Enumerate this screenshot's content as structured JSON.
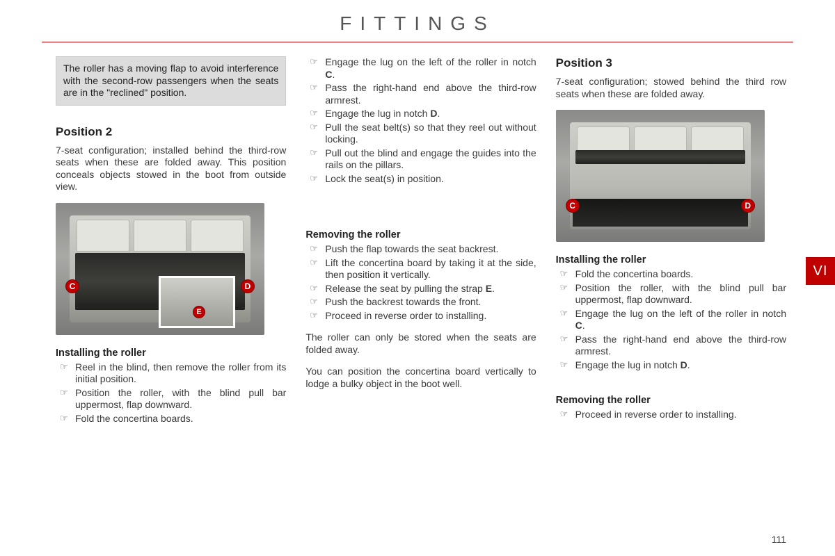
{
  "header": {
    "title": "FITTINGS"
  },
  "sideTab": "VI",
  "pageNumber": "111",
  "col1": {
    "infoBox": "The roller has a moving flap to avoid interference with the second-row passengers when the seats are in the \"reclined\" position.",
    "pos2": {
      "heading": "Position 2",
      "body": "7-seat configuration; installed behind the third-row seats when these are folded away. This position conceals objects stowed in the boot from outside view."
    },
    "fig": {
      "markerC": "C",
      "markerD": "D",
      "markerE": "E"
    },
    "install": {
      "heading": "Installing the roller",
      "items": [
        "Reel in the blind, then remove the roller from its initial position.",
        "Position the roller, with the blind pull bar uppermost, flap downward.",
        "Fold the concertina boards."
      ]
    }
  },
  "col2": {
    "topItems": [
      "Engage the lug on the left of the roller in notch <b>C</b>.",
      "Pass the right-hand end above the third-row armrest.",
      "Engage the lug in notch <b>D</b>.",
      "Pull the seat belt(s) so that they reel out without locking.",
      "Pull out the blind and engage the guides into the rails on the pillars.",
      "Lock the seat(s) in position."
    ],
    "remove": {
      "heading": "Removing the roller",
      "items": [
        "Push the flap towards the seat backrest.",
        "Lift the concertina board by taking it at the side, then position it vertically.",
        "Release the seat by pulling the strap <b>E</b>.",
        "Push the backrest towards the front.",
        "Proceed in reverse order to installing."
      ]
    },
    "note1": "The roller can only be stored when the seats are folded away.",
    "note2": "You can position the concertina board vertically to lodge a bulky object in the boot well."
  },
  "col3": {
    "pos3": {
      "heading": "Position 3",
      "body": "7-seat configuration; stowed behind the third row seats when these are folded away."
    },
    "fig": {
      "markerC": "C",
      "markerD": "D"
    },
    "install": {
      "heading": "Installing the roller",
      "items": [
        "Fold the concertina boards.",
        "Position the roller, with the blind pull bar uppermost, flap downward.",
        "Engage the lug on the left of the roller in notch <b>C</b>.",
        "Pass the right-hand end above the third-row armrest.",
        "Engage the lug in notch <b>D</b>."
      ]
    },
    "remove": {
      "heading": "Removing the roller",
      "items": [
        "Proceed in reverse order to installing."
      ]
    }
  }
}
